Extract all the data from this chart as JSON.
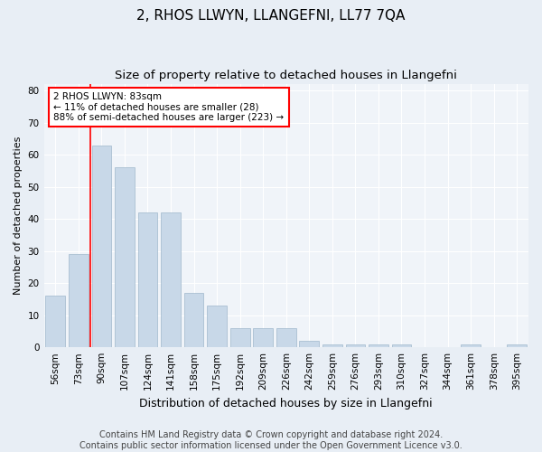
{
  "title1": "2, RHOS LLWYN, LLANGEFNI, LL77 7QA",
  "title2": "Size of property relative to detached houses in Llangefni",
  "xlabel": "Distribution of detached houses by size in Llangefni",
  "ylabel": "Number of detached properties",
  "footer": "Contains HM Land Registry data © Crown copyright and database right 2024.\nContains public sector information licensed under the Open Government Licence v3.0.",
  "categories": [
    "56sqm",
    "73sqm",
    "90sqm",
    "107sqm",
    "124sqm",
    "141sqm",
    "158sqm",
    "175sqm",
    "192sqm",
    "209sqm",
    "226sqm",
    "242sqm",
    "259sqm",
    "276sqm",
    "293sqm",
    "310sqm",
    "327sqm",
    "344sqm",
    "361sqm",
    "378sqm",
    "395sqm"
  ],
  "values": [
    16,
    29,
    63,
    56,
    42,
    42,
    17,
    13,
    6,
    6,
    6,
    2,
    1,
    1,
    1,
    1,
    0,
    0,
    1,
    0,
    1
  ],
  "bar_color": "#c8d8e8",
  "bar_edge_color": "#a0b8cc",
  "vline_color": "red",
  "annotation_text": "2 RHOS LLWYN: 83sqm\n← 11% of detached houses are smaller (28)\n88% of semi-detached houses are larger (223) →",
  "annotation_box_color": "white",
  "annotation_box_edge": "red",
  "ylim": [
    0,
    82
  ],
  "yticks": [
    0,
    10,
    20,
    30,
    40,
    50,
    60,
    70,
    80
  ],
  "bg_color": "#e8eef5",
  "plot_bg_color": "#f0f4f9",
  "grid_color": "white",
  "title1_fontsize": 11,
  "title2_fontsize": 9.5,
  "xlabel_fontsize": 9,
  "ylabel_fontsize": 8,
  "tick_fontsize": 7.5,
  "footer_fontsize": 7,
  "annot_fontsize": 7.5
}
